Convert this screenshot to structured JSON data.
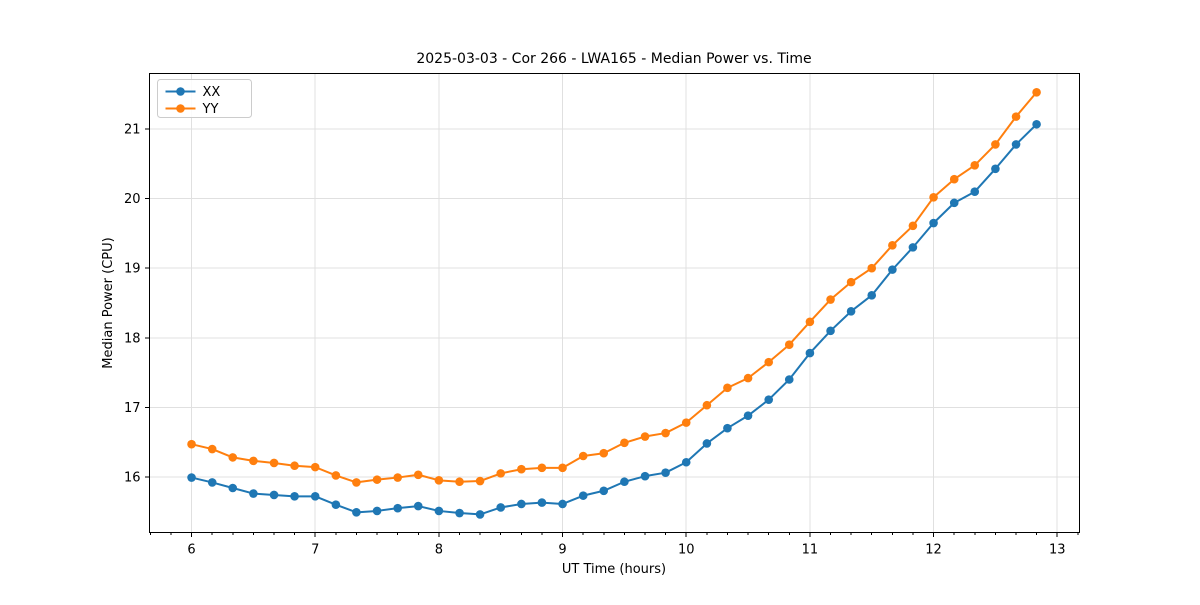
{
  "chart_data": {
    "type": "line",
    "title": "2025-03-03 - Cor 266 - LWA165 - Median Power vs. Time",
    "xlabel": "UT Time (hours)",
    "ylabel": "Median Power (CPU)",
    "xlim": [
      5.66,
      13.18
    ],
    "ylim": [
      15.2,
      21.8
    ],
    "x_ticks": [
      6,
      7,
      8,
      9,
      10,
      11,
      12,
      13
    ],
    "y_ticks": [
      16,
      17,
      18,
      19,
      20,
      21
    ],
    "x_minor_divisions": 6,
    "grid": true,
    "legend_position": "upper left",
    "grid_color": "#e0e0e0",
    "x": [
      6.0,
      6.167,
      6.333,
      6.5,
      6.667,
      6.833,
      7.0,
      7.167,
      7.333,
      7.5,
      7.667,
      7.833,
      8.0,
      8.167,
      8.333,
      8.5,
      8.667,
      8.833,
      9.0,
      9.167,
      9.333,
      9.5,
      9.667,
      9.833,
      10.0,
      10.167,
      10.333,
      10.5,
      10.667,
      10.833,
      11.0,
      11.167,
      11.333,
      11.5,
      11.667,
      11.833,
      12.0,
      12.167,
      12.333,
      12.5,
      12.667,
      12.833
    ],
    "series": [
      {
        "name": "XX",
        "color": "#1f77b4",
        "values": [
          15.99,
          15.92,
          15.84,
          15.76,
          15.74,
          15.72,
          15.72,
          15.6,
          15.49,
          15.51,
          15.55,
          15.58,
          15.51,
          15.48,
          15.46,
          15.56,
          15.61,
          15.63,
          15.61,
          15.73,
          15.8,
          15.93,
          16.01,
          16.06,
          16.21,
          16.48,
          16.7,
          16.88,
          17.11,
          17.4,
          17.78,
          18.1,
          18.38,
          18.61,
          18.98,
          19.3,
          19.65,
          19.94,
          20.1,
          20.43,
          20.78,
          21.07
        ]
      },
      {
        "name": "YY",
        "color": "#ff7f0e",
        "values": [
          16.47,
          16.4,
          16.28,
          16.23,
          16.2,
          16.16,
          16.14,
          16.02,
          15.92,
          15.96,
          15.99,
          16.03,
          15.95,
          15.93,
          15.94,
          16.05,
          16.11,
          16.13,
          16.13,
          16.3,
          16.34,
          16.49,
          16.58,
          16.63,
          16.78,
          17.03,
          17.28,
          17.42,
          17.65,
          17.9,
          18.23,
          18.55,
          18.8,
          19.0,
          19.33,
          19.61,
          20.02,
          20.28,
          20.48,
          20.78,
          21.18,
          21.53
        ]
      }
    ]
  }
}
